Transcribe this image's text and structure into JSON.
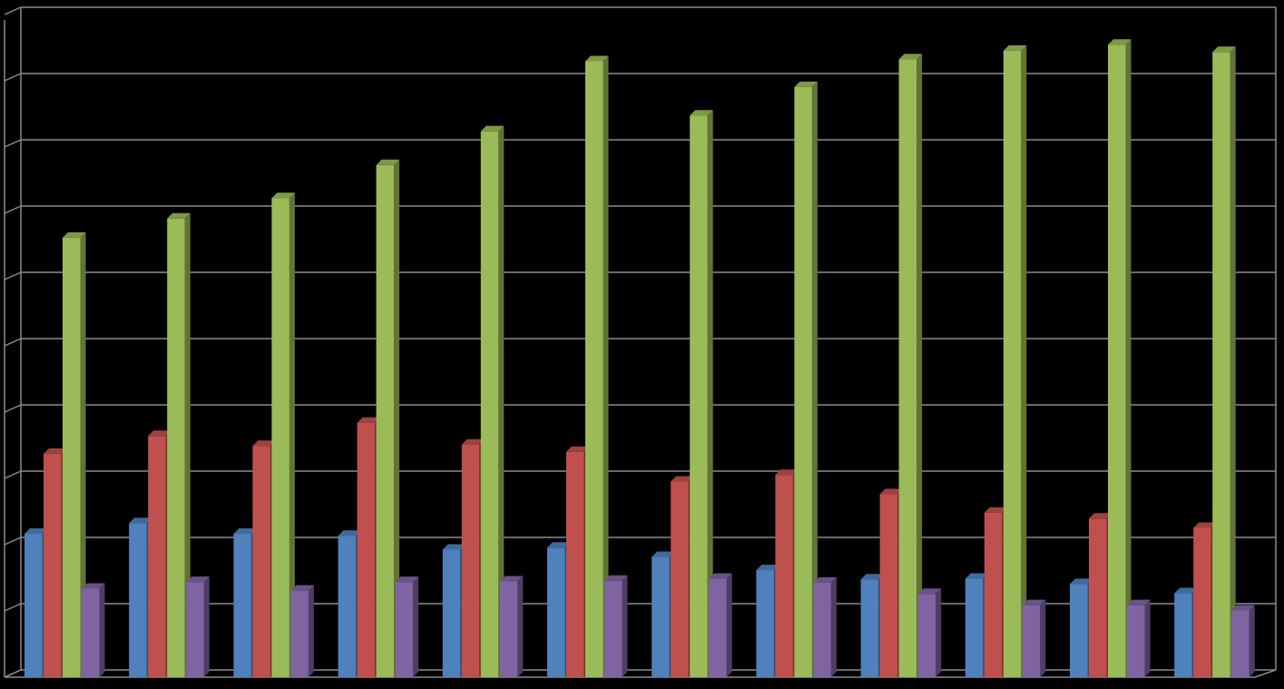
{
  "chart_data": {
    "type": "bar",
    "title": "",
    "xlabel": "",
    "ylabel": "",
    "categories": [
      "",
      "",
      "",
      "",
      "",
      "",
      "",
      "",
      "",
      "",
      "",
      ""
    ],
    "ylim": [
      0,
      100
    ],
    "grid": true,
    "series": [
      {
        "values": [
          21.7,
          23.3,
          21.7,
          21.4,
          19.3,
          19.6,
          18.2,
          16.2,
          14.8,
          14.9,
          14.1,
          12.7
        ],
        "color": "#4F81BD"
      },
      {
        "values": [
          33.8,
          36.5,
          35.0,
          38.5,
          35.2,
          34.1,
          29.6,
          30.6,
          27.7,
          24.9,
          24.0,
          22.6
        ],
        "color": "#C0504D"
      },
      {
        "values": [
          66.5,
          69.4,
          72.5,
          77.5,
          82.6,
          93.2,
          85.0,
          89.3,
          93.5,
          94.8,
          95.7,
          94.6
        ],
        "color": "#9BBB59"
      },
      {
        "values": [
          13.4,
          14.4,
          13.1,
          14.4,
          14.5,
          14.6,
          14.9,
          14.3,
          12.6,
          10.9,
          10.9,
          10.1
        ],
        "color": "#8064A2"
      }
    ]
  }
}
